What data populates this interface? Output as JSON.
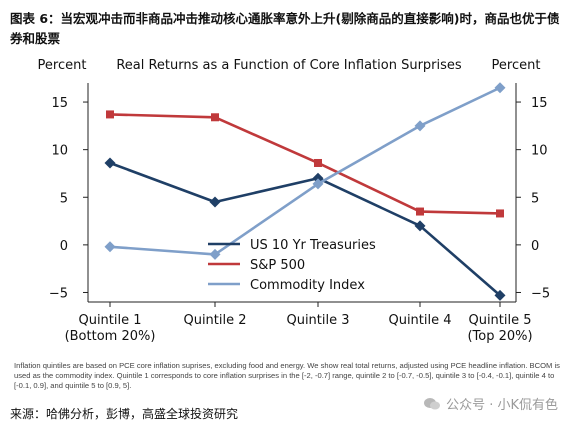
{
  "figure": {
    "title": "图表 6：当宏观冲击而非商品冲击推动核心通胀率意外上升(剔除商品的直接影响)时，商品也优于债券和股票",
    "footnote": "Inflation quintiles are based on PCE core inflation suprises, excluding food and energy. We show real total returns, adjusted using PCE headline inflation. BCOM is used as the commodity index. Quintile 1 corresponds to core inflation surprises in the [-2, -0.7] range, quintile 2 to [-0.7, -0.5], quintile 3 to [-0.4, -0.1], quintile 4 to [-0.1, 0.9], and quintile 5 to [0.9, 5].",
    "source": "来源：哈佛分析，彭博，高盛全球投资研究",
    "watermark": "公众号 · 小K侃有色"
  },
  "chart_data": {
    "type": "line",
    "title": "Real Returns as a Function of Core Inflation Surprises",
    "ylabel_left": "Percent",
    "ylabel_right": "Percent",
    "categories": [
      "Quintile 1",
      "Quintile 2",
      "Quintile 3",
      "Quintile 4",
      "Quintile 5"
    ],
    "category_sublabels": [
      "(Bottom 20%)",
      "",
      "",
      "",
      "(Top 20%)"
    ],
    "ylim": [
      -6,
      17
    ],
    "yticks": [
      -5,
      0,
      5,
      10,
      15
    ],
    "grid": false,
    "legend_position": "center-right",
    "series": [
      {
        "name": "US 10 Yr Treasuries",
        "color": "#1f3f66",
        "marker": "diamond",
        "values": [
          8.6,
          4.5,
          7.0,
          2.0,
          -5.3
        ]
      },
      {
        "name": "S&P 500",
        "color": "#c0393b",
        "marker": "square",
        "values": [
          13.7,
          13.4,
          8.6,
          3.5,
          3.3
        ]
      },
      {
        "name": "Commodity Index",
        "color": "#7f9fc9",
        "marker": "diamond",
        "values": [
          -0.2,
          -1.0,
          6.4,
          12.5,
          16.5
        ]
      }
    ]
  }
}
